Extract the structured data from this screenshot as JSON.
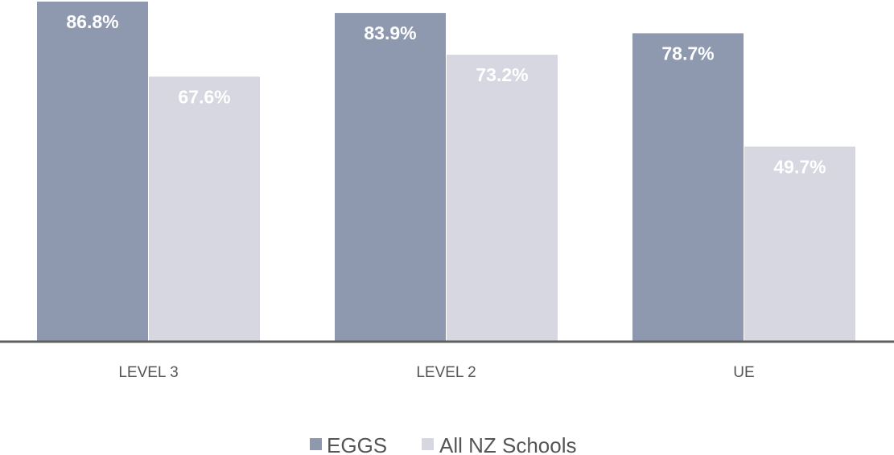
{
  "chart_data": {
    "type": "bar",
    "title": "",
    "xlabel": "",
    "ylabel": "",
    "categories": [
      "LEVEL 3",
      "LEVEL 2",
      "UE"
    ],
    "series": [
      {
        "name": "EGGS",
        "values": [
          86.8,
          83.9,
          78.7
        ],
        "labels": [
          "86.8%",
          "83.9%",
          "78.7%"
        ],
        "color": "#8e99b0"
      },
      {
        "name": "All NZ Schools",
        "values": [
          67.6,
          73.2,
          49.7
        ],
        "labels": [
          "67.6%",
          "73.2%",
          "49.7%"
        ],
        "color": "#d6d7e1"
      }
    ],
    "ylim": [
      0,
      86.8
    ],
    "grid": false,
    "legend": "bottom-center",
    "axis_color": "#606060",
    "label_color": "#ffffff",
    "text_color": "#555555"
  }
}
